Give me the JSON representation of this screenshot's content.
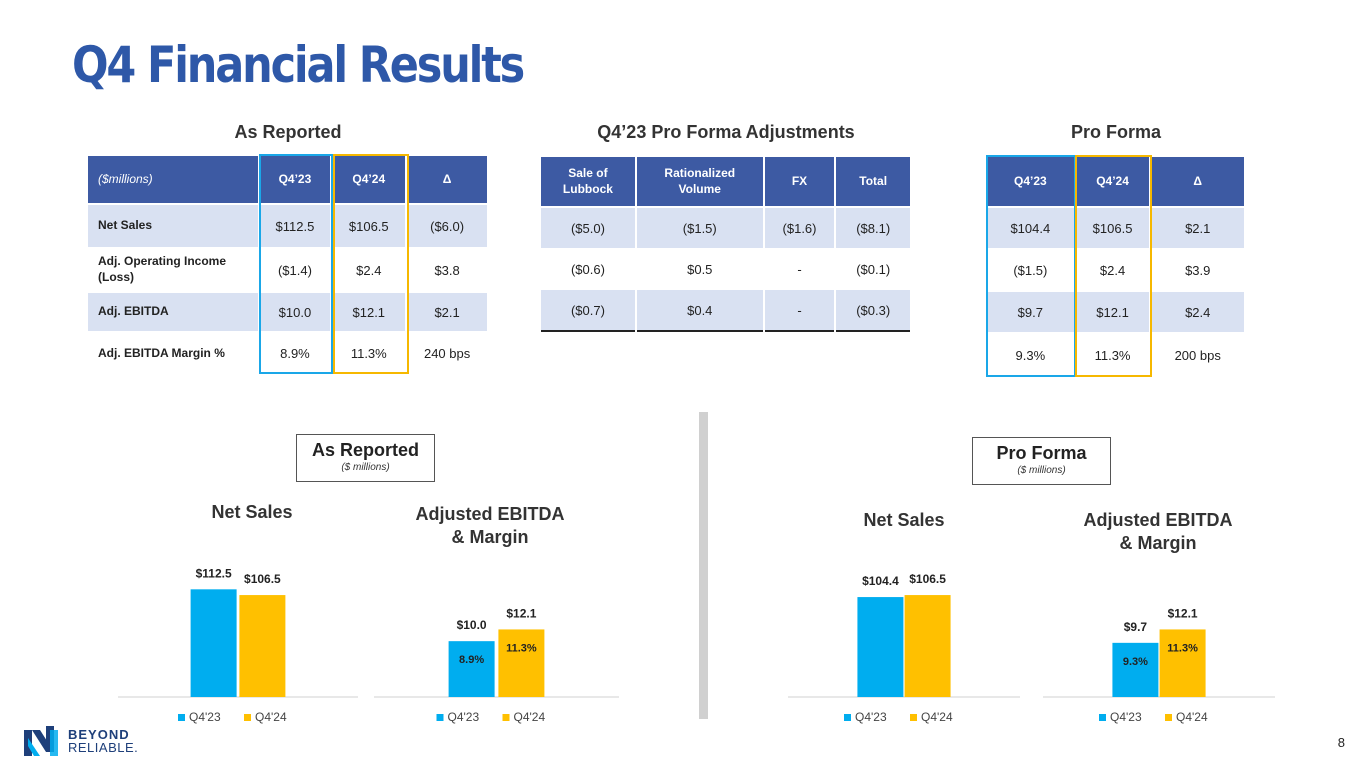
{
  "title": "Q4 Financial Results",
  "as_reported": {
    "heading": "As Reported",
    "columns": [
      "($millions)",
      "Q4’23",
      "Q4’24",
      "Δ"
    ],
    "rows": [
      {
        "label": "Net Sales",
        "values": [
          "$112.5",
          "$106.5",
          "($6.0)"
        ]
      },
      {
        "label": "Adj. Operating Income (Loss)",
        "values": [
          "($1.4)",
          "$2.4",
          "$3.8"
        ]
      },
      {
        "label": "Adj. EBITDA",
        "values": [
          "$10.0",
          "$12.1",
          "$2.1"
        ]
      },
      {
        "label": "Adj. EBITDA Margin %",
        "values": [
          "8.9%",
          "11.3%",
          "240 bps"
        ]
      }
    ]
  },
  "adjustments": {
    "heading": "Q4’23 Pro Forma Adjustments",
    "columns": [
      "Sale of Lubbock",
      "Rationalized Volume",
      "FX",
      "Total"
    ],
    "rows": [
      [
        "($5.0)",
        "($1.5)",
        "($1.6)",
        "($8.1)"
      ],
      [
        "($0.6)",
        "$0.5",
        "-",
        "($0.1)"
      ],
      [
        "($0.7)",
        "$0.4",
        "-",
        "($0.3)"
      ]
    ]
  },
  "pro_forma": {
    "heading": "Pro Forma",
    "columns": [
      "Q4’23",
      "Q4’24",
      "Δ"
    ],
    "rows": [
      [
        "$104.4",
        "$106.5",
        "$2.1"
      ],
      [
        "($1.5)",
        "$2.4",
        "$3.9"
      ],
      [
        "$9.7",
        "$12.1",
        "$2.4"
      ],
      [
        "9.3%",
        "11.3%",
        "200 bps"
      ]
    ]
  },
  "boxes": {
    "as_reported": {
      "title": "As Reported",
      "subtitle": "($ millions)"
    },
    "pro_forma": {
      "title": "Pro Forma",
      "subtitle": "($ millions)"
    }
  },
  "colors": {
    "q4_23": "#00adef",
    "q4_24": "#ffc000",
    "header": "#3d5aa3",
    "shade": "#d9e1f2"
  },
  "chart_data": [
    {
      "type": "bar",
      "title": "Net Sales",
      "categories": [
        "Q4'23",
        "Q4'24"
      ],
      "values": [
        112.5,
        106.5
      ],
      "value_labels": [
        "$112.5",
        "$106.5"
      ],
      "ylim": [
        0,
        140
      ],
      "legend": [
        "Q4'23",
        "Q4'24"
      ]
    },
    {
      "type": "bar",
      "title": "Adjusted EBITDA & Margin",
      "categories": [
        "Q4'23",
        "Q4'24"
      ],
      "values": [
        10.0,
        12.1
      ],
      "value_labels": [
        "$10.0",
        "$12.1"
      ],
      "margins": [
        "8.9%",
        "11.3%"
      ],
      "ylim": [
        0,
        24
      ],
      "legend": [
        "Q4'23",
        "Q4'24"
      ]
    },
    {
      "type": "bar",
      "title": "Net Sales",
      "categories": [
        "Q4'23",
        "Q4'24"
      ],
      "values": [
        104.4,
        106.5
      ],
      "value_labels": [
        "$104.4",
        "$106.5"
      ],
      "ylim": [
        0,
        140
      ],
      "legend": [
        "Q4'23",
        "Q4'24"
      ]
    },
    {
      "type": "bar",
      "title": "Adjusted EBITDA & Margin",
      "categories": [
        "Q4'23",
        "Q4'24"
      ],
      "values": [
        9.7,
        12.1
      ],
      "value_labels": [
        "$9.7",
        "$12.1"
      ],
      "margins": [
        "9.3%",
        "11.3%"
      ],
      "ylim": [
        0,
        24
      ],
      "legend": [
        "Q4'23",
        "Q4'24"
      ]
    }
  ],
  "chart_titles": [
    [
      "Net Sales"
    ],
    [
      "Adjusted EBITDA",
      "& Margin"
    ],
    [
      "Net Sales"
    ],
    [
      "Adjusted EBITDA",
      "& Margin"
    ]
  ],
  "logo": {
    "line1": "BEYOND",
    "line2": "RELIABLE."
  },
  "page_number": "8"
}
